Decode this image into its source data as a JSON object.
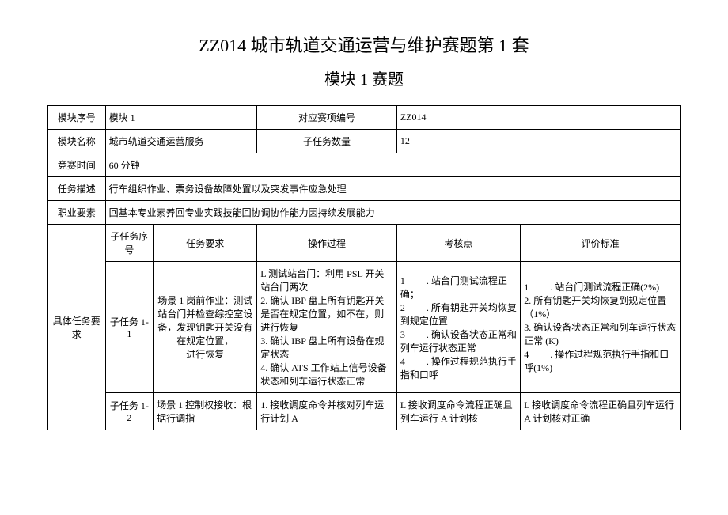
{
  "title": "ZZ014 城市轨道交通运营与维护赛题第 1 套",
  "subtitle": "模块 1 赛题",
  "labels": {
    "module_no": "模块序号",
    "module_name": "模块名称",
    "contest_time": "竞赛时间",
    "task_desc": "任务描述",
    "occupation": "职业要素",
    "task_req": "具体任务要求",
    "corresponding_no": "对应赛项编号",
    "subtask_count": "子任务数量",
    "subtask_no": "子任务序号",
    "task_req_col": "任务要求",
    "operation": "操作过程",
    "checkpoint": "考核点",
    "criteria": "评价标准"
  },
  "header": {
    "module_no": "模块 1",
    "corresponding_no": "ZZ014",
    "module_name": "城市轨道交通运营服务",
    "subtask_count": "12",
    "contest_time": "60 分钟",
    "task_desc": "行车组织作业、票务设备故障处置以及突发事件应急处理",
    "occupation": "回基本专业素养回专业实践技能回协调协作能力因持续发展能力"
  },
  "rows": [
    {
      "subtask_no": "子任务 1-1",
      "task_req": "场景 1 岗前作业：测试站台门并检查综控室设备，发现钥匙开关没有在规定位置，\n进行恢复",
      "operation": "L 测试站台门：利用 PSL 开关站台门两次\n2. 确认 IBP 盘上所有钥匙开关是否在规定位置，如不在，则进行恢复\n3. 确认 IBP 盘上所有设备在规定状态\n4. 确认 ATS 工作站上信号设备状态和列车运行状态正常",
      "checkpoint": "1         . 站台门测试流程正确；\n2         . 所有钥匙开关均恢复到规定位置\n3         . 确认设备状态正常和列车运行状态正常\n4         . 操作过程规范执行手指和口呼",
      "criteria": "1         . 站台门测试流程正确(2%)\n2. 所有钥匙开关均恢复到规定位置（1%）\n3. 确认设备状态正常和列车运行状态正常 (K)\n4         . 操作过程规范执行手指和口呼(1%)"
    },
    {
      "subtask_no": "子任务 1-2",
      "task_req": "场景 1 控制权接收：根据行调指",
      "operation": "1. 接收调度命令并核对列车运行计划 A",
      "checkpoint": "L 接收调度命令流程正确且列车运行 A 计划核",
      "criteria": "L 接收调度命令流程正确且列车运行 A 计划核对正确"
    }
  ]
}
